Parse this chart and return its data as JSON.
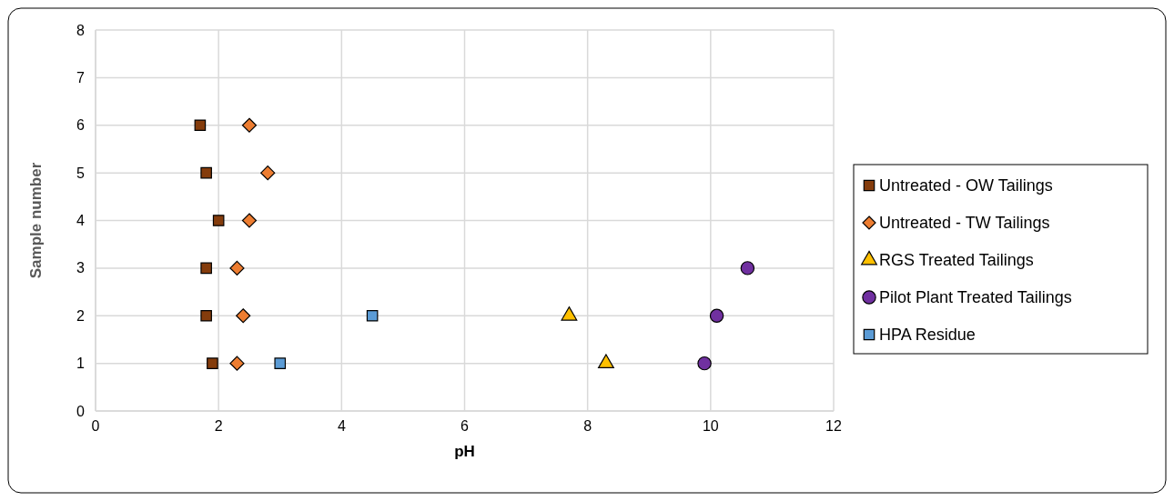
{
  "chart_data": {
    "type": "scatter",
    "xlabel": "pH",
    "ylabel": "Sample number",
    "xlim": [
      0,
      12
    ],
    "xticks": [
      0,
      2,
      4,
      6,
      8,
      10,
      12
    ],
    "ylim": [
      0,
      8
    ],
    "yticks": [
      0,
      1,
      2,
      3,
      4,
      5,
      6,
      7,
      8
    ],
    "grid": true,
    "legend": "right",
    "series": [
      {
        "name": "Untreated - OW Tailings",
        "color": "#843c0c",
        "marker": "square",
        "x": [
          1.7,
          1.8,
          2.0,
          1.8,
          1.8,
          1.9
        ],
        "values": [
          6,
          5,
          4,
          3,
          2,
          1
        ]
      },
      {
        "name": "Untreated - TW Tailings",
        "color": "#ed7d31",
        "marker": "diamond",
        "x": [
          2.5,
          2.8,
          2.5,
          2.3,
          2.4,
          2.3
        ],
        "values": [
          6,
          5,
          4,
          3,
          2,
          1
        ]
      },
      {
        "name": "RGS Treated Tailings",
        "color": "#ffc000",
        "marker": "triangle",
        "x": [
          7.7,
          8.3
        ],
        "values": [
          2,
          1
        ]
      },
      {
        "name": "Pilot Plant Treated Tailings",
        "color": "#7030a0",
        "marker": "circle",
        "x": [
          10.6,
          10.1,
          9.9
        ],
        "values": [
          3,
          2,
          1
        ]
      },
      {
        "name": "HPA Residue",
        "color": "#5b9bd5",
        "marker": "square",
        "x": [
          4.5,
          3.0
        ],
        "values": [
          2,
          1
        ]
      }
    ]
  }
}
